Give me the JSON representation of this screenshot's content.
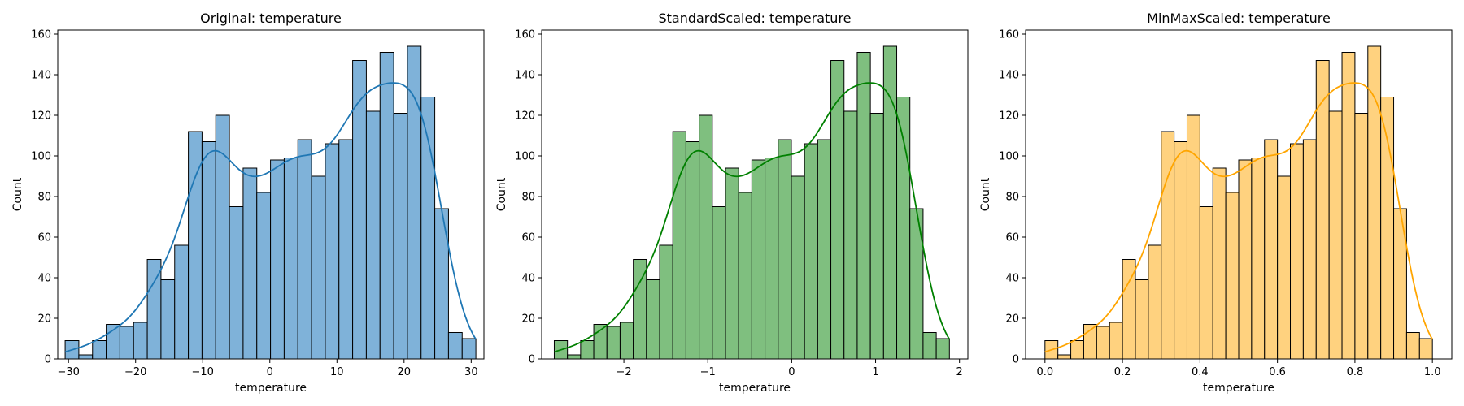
{
  "counts": [
    9,
    2,
    9,
    17,
    16,
    18,
    49,
    39,
    56,
    112,
    107,
    120,
    75,
    94,
    82,
    98,
    99,
    108,
    90,
    106,
    108,
    147,
    122,
    151,
    121,
    154,
    129,
    74,
    13,
    10
  ],
  "chart_data": [
    {
      "type": "bar",
      "title": "Original: temperature",
      "xlabel": "temperature",
      "ylabel": "Count",
      "color": "#1f77b4",
      "fill": "#7fb2d9",
      "bins": 30,
      "xrange": [
        -30.5,
        30.7
      ],
      "xlim": [
        -31.6,
        31.9
      ],
      "ylim": [
        0,
        162
      ],
      "xticks": [
        -30,
        -20,
        -10,
        0,
        10,
        20,
        30
      ],
      "xticklabels": [
        "−30",
        "−20",
        "−10",
        "0",
        "10",
        "20",
        "30"
      ],
      "yticks": [
        0,
        20,
        40,
        60,
        80,
        100,
        120,
        140,
        160
      ],
      "kde": true
    },
    {
      "type": "bar",
      "title": "StandardScaled: temperature",
      "xlabel": "temperature",
      "ylabel": "Count",
      "color": "#008000",
      "fill": "#7fbf7f",
      "bins": 30,
      "xrange": [
        -2.83,
        1.88
      ],
      "xlim": [
        -2.98,
        2.1
      ],
      "ylim": [
        0,
        162
      ],
      "xticks": [
        -2,
        -1,
        0,
        1,
        2
      ],
      "xticklabels": [
        "−2",
        "−1",
        "0",
        "1",
        "2"
      ],
      "yticks": [
        0,
        20,
        40,
        60,
        80,
        100,
        120,
        140,
        160
      ],
      "kde": true
    },
    {
      "type": "bar",
      "title": "MinMaxScaled: temperature",
      "xlabel": "temperature",
      "ylabel": "Count",
      "color": "#ffa500",
      "fill": "#ffd27f",
      "bins": 30,
      "xrange": [
        0.0,
        1.0
      ],
      "xlim": [
        -0.05,
        1.05
      ],
      "ylim": [
        0,
        162
      ],
      "xticks": [
        0.0,
        0.2,
        0.4,
        0.6,
        0.8,
        1.0
      ],
      "xticklabels": [
        "0.0",
        "0.2",
        "0.4",
        "0.6",
        "0.8",
        "1.0"
      ],
      "yticks": [
        0,
        20,
        40,
        60,
        80,
        100,
        120,
        140,
        160
      ],
      "kde": true
    }
  ]
}
